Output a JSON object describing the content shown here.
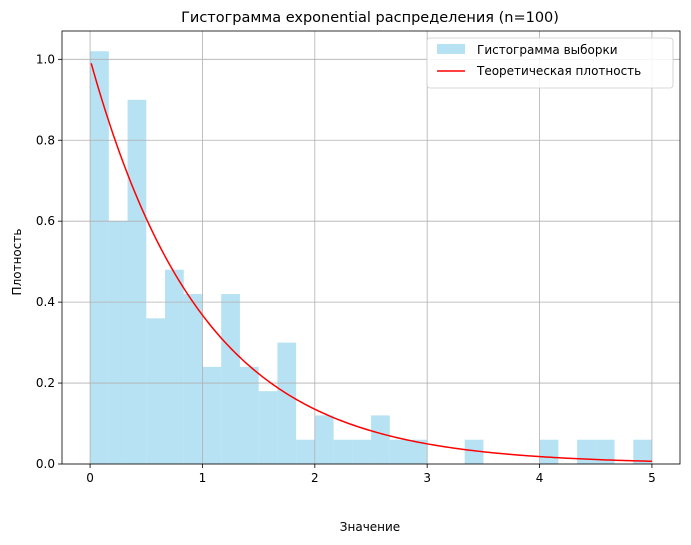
{
  "chart_data": {
    "type": "bar",
    "title": "Гистограмма exponential распределения (n=100)",
    "xlabel": "Значение",
    "ylabel": "Плотность",
    "xlim": [
      -0.25,
      5.25
    ],
    "ylim": [
      0,
      1.07
    ],
    "xticks": [
      0,
      1,
      2,
      3,
      4,
      5
    ],
    "yticks": [
      0.0,
      0.2,
      0.4,
      0.6,
      0.8,
      1.0
    ],
    "grid": true,
    "legend_position": "top-right",
    "series": [
      {
        "name": "Гистограмма выборки",
        "kind": "histogram",
        "color": "#87CEEB",
        "opacity": 0.6,
        "bin_start": 0.0,
        "bin_width": 0.1667,
        "values": [
          1.02,
          0.6,
          0.9,
          0.36,
          0.48,
          0.42,
          0.24,
          0.42,
          0.24,
          0.18,
          0.3,
          0.06,
          0.12,
          0.06,
          0.06,
          0.12,
          0.06,
          0.06,
          0.0,
          0.0,
          0.06,
          0.0,
          0.0,
          0.0,
          0.06,
          0.0,
          0.06,
          0.06,
          0.0,
          0.06
        ]
      },
      {
        "name": "Теоретическая плотность",
        "kind": "line",
        "color": "#FF0000",
        "function": "exp(-x)",
        "x_range": [
          0.01,
          5.0
        ]
      }
    ]
  }
}
